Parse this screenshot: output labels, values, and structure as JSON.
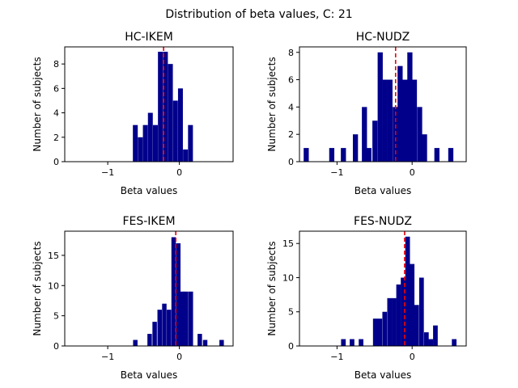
{
  "figure": {
    "suptitle": "Distribution of beta values, C: 21"
  },
  "colors": {
    "bar": "#00008b",
    "mean_line": "#e8000b"
  },
  "chart_data": [
    {
      "type": "bar",
      "title": "HC-IKEM",
      "xlabel": "Beta values",
      "ylabel": "Number of subjects",
      "xlim": [
        -1.6,
        0.75
      ],
      "ylim": [
        0,
        9.4
      ],
      "xticks": [
        -1,
        0
      ],
      "yticks": [
        0,
        2,
        4,
        6,
        8
      ],
      "bin_width": 0.068,
      "bars": [
        {
          "x": -0.615,
          "y": 3
        },
        {
          "x": -0.545,
          "y": 2
        },
        {
          "x": -0.475,
          "y": 3
        },
        {
          "x": -0.405,
          "y": 4
        },
        {
          "x": -0.335,
          "y": 3
        },
        {
          "x": -0.265,
          "y": 9
        },
        {
          "x": -0.195,
          "y": 9
        },
        {
          "x": -0.125,
          "y": 8
        },
        {
          "x": -0.055,
          "y": 5
        },
        {
          "x": 0.015,
          "y": 6
        },
        {
          "x": 0.085,
          "y": 1
        },
        {
          "x": 0.155,
          "y": 3
        }
      ],
      "mean_line": -0.22
    },
    {
      "type": "bar",
      "title": "HC-NUDZ",
      "xlabel": "Beta values",
      "ylabel": "Number of subjects",
      "xlim": [
        -1.5,
        0.72
      ],
      "ylim": [
        0,
        8.4
      ],
      "xticks": [
        -1,
        0
      ],
      "yticks": [
        0,
        2,
        4,
        6,
        8
      ],
      "bin_width": 0.068,
      "bars": [
        {
          "x": -1.41,
          "y": 1
        },
        {
          "x": -1.07,
          "y": 1
        },
        {
          "x": -0.915,
          "y": 1
        },
        {
          "x": -0.755,
          "y": 2
        },
        {
          "x": -0.635,
          "y": 4
        },
        {
          "x": -0.575,
          "y": 1
        },
        {
          "x": -0.495,
          "y": 3
        },
        {
          "x": -0.425,
          "y": 8
        },
        {
          "x": -0.36,
          "y": 6
        },
        {
          "x": -0.295,
          "y": 6
        },
        {
          "x": -0.225,
          "y": 4
        },
        {
          "x": -0.16,
          "y": 7
        },
        {
          "x": -0.095,
          "y": 6
        },
        {
          "x": -0.03,
          "y": 8
        },
        {
          "x": 0.03,
          "y": 6
        },
        {
          "x": 0.1,
          "y": 4
        },
        {
          "x": 0.165,
          "y": 2
        },
        {
          "x": 0.33,
          "y": 1
        },
        {
          "x": 0.515,
          "y": 1
        }
      ],
      "mean_line": -0.22
    },
    {
      "type": "bar",
      "title": "FES-IKEM",
      "xlabel": "Beta values",
      "ylabel": "Number of subjects",
      "xlim": [
        -1.6,
        0.75
      ],
      "ylim": [
        0,
        19
      ],
      "xticks": [
        -1,
        0
      ],
      "yticks": [
        0,
        5,
        10,
        15
      ],
      "bin_width": 0.062,
      "bars": [
        {
          "x": -0.615,
          "y": 1
        },
        {
          "x": -0.415,
          "y": 2
        },
        {
          "x": -0.345,
          "y": 4
        },
        {
          "x": -0.275,
          "y": 6
        },
        {
          "x": -0.21,
          "y": 7
        },
        {
          "x": -0.145,
          "y": 6
        },
        {
          "x": -0.08,
          "y": 18
        },
        {
          "x": -0.015,
          "y": 17
        },
        {
          "x": 0.04,
          "y": 9
        },
        {
          "x": 0.095,
          "y": 9
        },
        {
          "x": 0.16,
          "y": 9
        },
        {
          "x": 0.285,
          "y": 2
        },
        {
          "x": 0.36,
          "y": 1
        },
        {
          "x": 0.59,
          "y": 1
        }
      ],
      "mean_line": -0.05
    },
    {
      "type": "bar",
      "title": "FES-NUDZ",
      "xlabel": "Beta values",
      "ylabel": "Number of subjects",
      "xlim": [
        -1.5,
        0.72
      ],
      "ylim": [
        0,
        16.8
      ],
      "xticks": [
        -1,
        0
      ],
      "yticks": [
        0,
        5,
        10,
        15
      ],
      "bin_width": 0.062,
      "bars": [
        {
          "x": -0.915,
          "y": 1
        },
        {
          "x": -0.8,
          "y": 1
        },
        {
          "x": -0.68,
          "y": 1
        },
        {
          "x": -0.49,
          "y": 4
        },
        {
          "x": -0.43,
          "y": 4
        },
        {
          "x": -0.365,
          "y": 5
        },
        {
          "x": -0.3,
          "y": 7
        },
        {
          "x": -0.24,
          "y": 7
        },
        {
          "x": -0.18,
          "y": 9
        },
        {
          "x": -0.12,
          "y": 10
        },
        {
          "x": -0.06,
          "y": 16
        },
        {
          "x": 0.0,
          "y": 12
        },
        {
          "x": 0.06,
          "y": 6
        },
        {
          "x": 0.125,
          "y": 10
        },
        {
          "x": 0.19,
          "y": 2
        },
        {
          "x": 0.25,
          "y": 1
        },
        {
          "x": 0.31,
          "y": 3
        },
        {
          "x": 0.56,
          "y": 1
        }
      ],
      "mean_line": -0.1
    }
  ]
}
